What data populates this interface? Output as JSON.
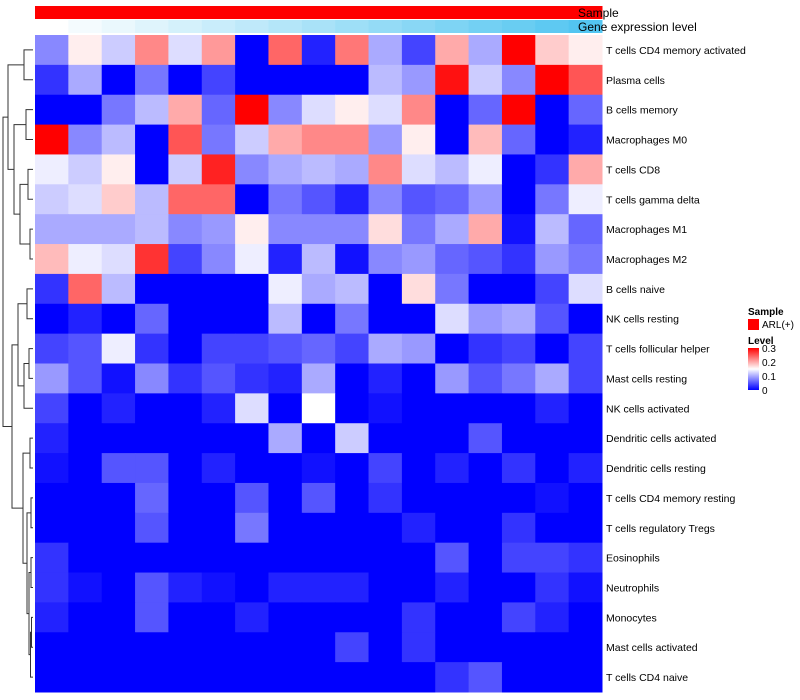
{
  "chart_data": {
    "type": "heatmap",
    "title": "",
    "annotations": [
      {
        "name": "Sample",
        "color": "#ff0000"
      },
      {
        "name": "Gene expression level",
        "gradient": [
          "#ffffff",
          "#4cc3f0"
        ]
      }
    ],
    "rows": [
      "T cells CD4 memory activated",
      "Plasma cells",
      "B cells memory",
      "Macrophages M0",
      "T cells CD8",
      "T cells gamma delta",
      "Macrophages M1",
      "Macrophages M2",
      "B cells naive",
      "NK cells resting",
      "T cells follicular helper",
      "Mast cells resting",
      "NK cells activated",
      "Dendritic cells activated",
      "Dendritic cells resting",
      "T cells CD4 memory resting",
      "T cells regulatory  Tregs",
      "Eosinophils",
      "Neutrophils",
      "Monocytes",
      "Mast cells activated",
      "T cells CD4 naive"
    ],
    "n_columns": 17,
    "values": [
      [
        0.08,
        0.16,
        0.12,
        0.22,
        0.13,
        0.21,
        0.0,
        0.24,
        0.02,
        0.23,
        0.1,
        0.04,
        0.2,
        0.1,
        0.3,
        0.18,
        0.16
      ],
      [
        0.03,
        0.1,
        0.0,
        0.07,
        0.0,
        0.04,
        0.0,
        0.0,
        0.0,
        0.0,
        0.11,
        0.09,
        0.29,
        0.12,
        0.08,
        0.3,
        0.25
      ],
      [
        0.0,
        0.0,
        0.07,
        0.11,
        0.2,
        0.06,
        0.3,
        0.08,
        0.13,
        0.16,
        0.13,
        0.22,
        0.0,
        0.06,
        0.3,
        0.0,
        0.06
      ],
      [
        0.3,
        0.08,
        0.11,
        0.0,
        0.25,
        0.07,
        0.12,
        0.2,
        0.22,
        0.22,
        0.09,
        0.16,
        0.0,
        0.19,
        0.06,
        0.0,
        0.02
      ],
      [
        0.14,
        0.12,
        0.16,
        0.0,
        0.12,
        0.28,
        0.08,
        0.1,
        0.11,
        0.1,
        0.22,
        0.13,
        0.11,
        0.14,
        0.0,
        0.03,
        0.2
      ],
      [
        0.12,
        0.13,
        0.18,
        0.11,
        0.24,
        0.24,
        0.0,
        0.07,
        0.05,
        0.02,
        0.08,
        0.05,
        0.06,
        0.09,
        0.0,
        0.07,
        0.14
      ],
      [
        0.1,
        0.1,
        0.1,
        0.11,
        0.08,
        0.09,
        0.16,
        0.08,
        0.08,
        0.08,
        0.17,
        0.07,
        0.1,
        0.2,
        0.01,
        0.11,
        0.06
      ],
      [
        0.19,
        0.14,
        0.13,
        0.27,
        0.04,
        0.08,
        0.14,
        0.02,
        0.11,
        0.01,
        0.08,
        0.09,
        0.06,
        0.05,
        0.03,
        0.09,
        0.07
      ],
      [
        0.03,
        0.24,
        0.11,
        0.0,
        0.0,
        0.0,
        0.0,
        0.14,
        0.1,
        0.11,
        0.0,
        0.17,
        0.07,
        0.0,
        0.0,
        0.04,
        0.13
      ],
      [
        0.0,
        0.02,
        0.0,
        0.06,
        0.0,
        0.0,
        0.0,
        0.11,
        0.0,
        0.07,
        0.0,
        0.0,
        0.13,
        0.09,
        0.1,
        0.05,
        0.0
      ],
      [
        0.04,
        0.05,
        0.14,
        0.03,
        0.0,
        0.04,
        0.04,
        0.05,
        0.06,
        0.04,
        0.1,
        0.09,
        0.0,
        0.03,
        0.04,
        0.0,
        0.04
      ],
      [
        0.09,
        0.05,
        0.01,
        0.08,
        0.03,
        0.05,
        0.03,
        0.02,
        0.1,
        0.0,
        0.02,
        0.0,
        0.09,
        0.05,
        0.07,
        0.1,
        0.04
      ],
      [
        0.04,
        0.0,
        0.02,
        0.0,
        0.0,
        0.02,
        0.13,
        0.0,
        0.15,
        0.0,
        0.01,
        0.0,
        0.0,
        0.0,
        0.0,
        0.02,
        0.0
      ],
      [
        0.02,
        0.0,
        0.0,
        0.0,
        0.0,
        0.0,
        0.0,
        0.1,
        0.0,
        0.12,
        0.0,
        0.0,
        0.0,
        0.05,
        0.0,
        0.0,
        0.0
      ],
      [
        0.01,
        0.0,
        0.05,
        0.05,
        0.0,
        0.02,
        0.0,
        0.0,
        0.01,
        0.0,
        0.04,
        0.0,
        0.02,
        0.0,
        0.03,
        0.0,
        0.02
      ],
      [
        0.0,
        0.0,
        0.0,
        0.06,
        0.0,
        0.0,
        0.05,
        0.0,
        0.05,
        0.0,
        0.03,
        0.0,
        0.0,
        0.0,
        0.0,
        0.01,
        0.0
      ],
      [
        0.0,
        0.0,
        0.0,
        0.05,
        0.0,
        0.0,
        0.07,
        0.0,
        0.0,
        0.0,
        0.0,
        0.02,
        0.0,
        0.0,
        0.03,
        0.0,
        0.0
      ],
      [
        0.03,
        0.0,
        0.0,
        0.0,
        0.0,
        0.0,
        0.0,
        0.0,
        0.0,
        0.0,
        0.0,
        0.0,
        0.05,
        0.0,
        0.04,
        0.04,
        0.03
      ],
      [
        0.03,
        0.01,
        0.0,
        0.05,
        0.02,
        0.01,
        0.0,
        0.02,
        0.02,
        0.02,
        0.0,
        0.0,
        0.02,
        0.0,
        0.0,
        0.03,
        0.01
      ],
      [
        0.02,
        0.0,
        0.0,
        0.05,
        0.0,
        0.0,
        0.02,
        0.0,
        0.0,
        0.0,
        0.0,
        0.03,
        0.0,
        0.0,
        0.04,
        0.02,
        0.0
      ],
      [
        0.0,
        0.0,
        0.0,
        0.0,
        0.0,
        0.0,
        0.0,
        0.0,
        0.0,
        0.04,
        0.0,
        0.03,
        0.0,
        0.0,
        0.0,
        0.0,
        0.0
      ],
      [
        0.0,
        0.0,
        0.0,
        0.0,
        0.0,
        0.0,
        0.0,
        0.0,
        0.0,
        0.0,
        0.0,
        0.0,
        0.03,
        0.05,
        0.0,
        0.0,
        0.0
      ]
    ],
    "gene_expression_level": [
      0.0,
      0.06,
      0.12,
      0.18,
      0.24,
      0.3,
      0.36,
      0.42,
      0.48,
      0.54,
      0.6,
      0.66,
      0.72,
      0.78,
      0.84,
      0.9,
      0.96
    ],
    "color_scale": {
      "min": 0,
      "mid": 0.15,
      "max": 0.3,
      "colors": [
        "#0000ff",
        "#ffffff",
        "#ff0000"
      ]
    },
    "legend": {
      "sample_title": "Sample",
      "sample_entry": "ARL(+)",
      "sample_color": "#ff0000",
      "level_title": "Level",
      "ticks": [
        "0.3",
        "0.2",
        "0.1",
        "0"
      ],
      "tick_values": [
        0.3,
        0.2,
        0.1,
        0
      ]
    }
  }
}
